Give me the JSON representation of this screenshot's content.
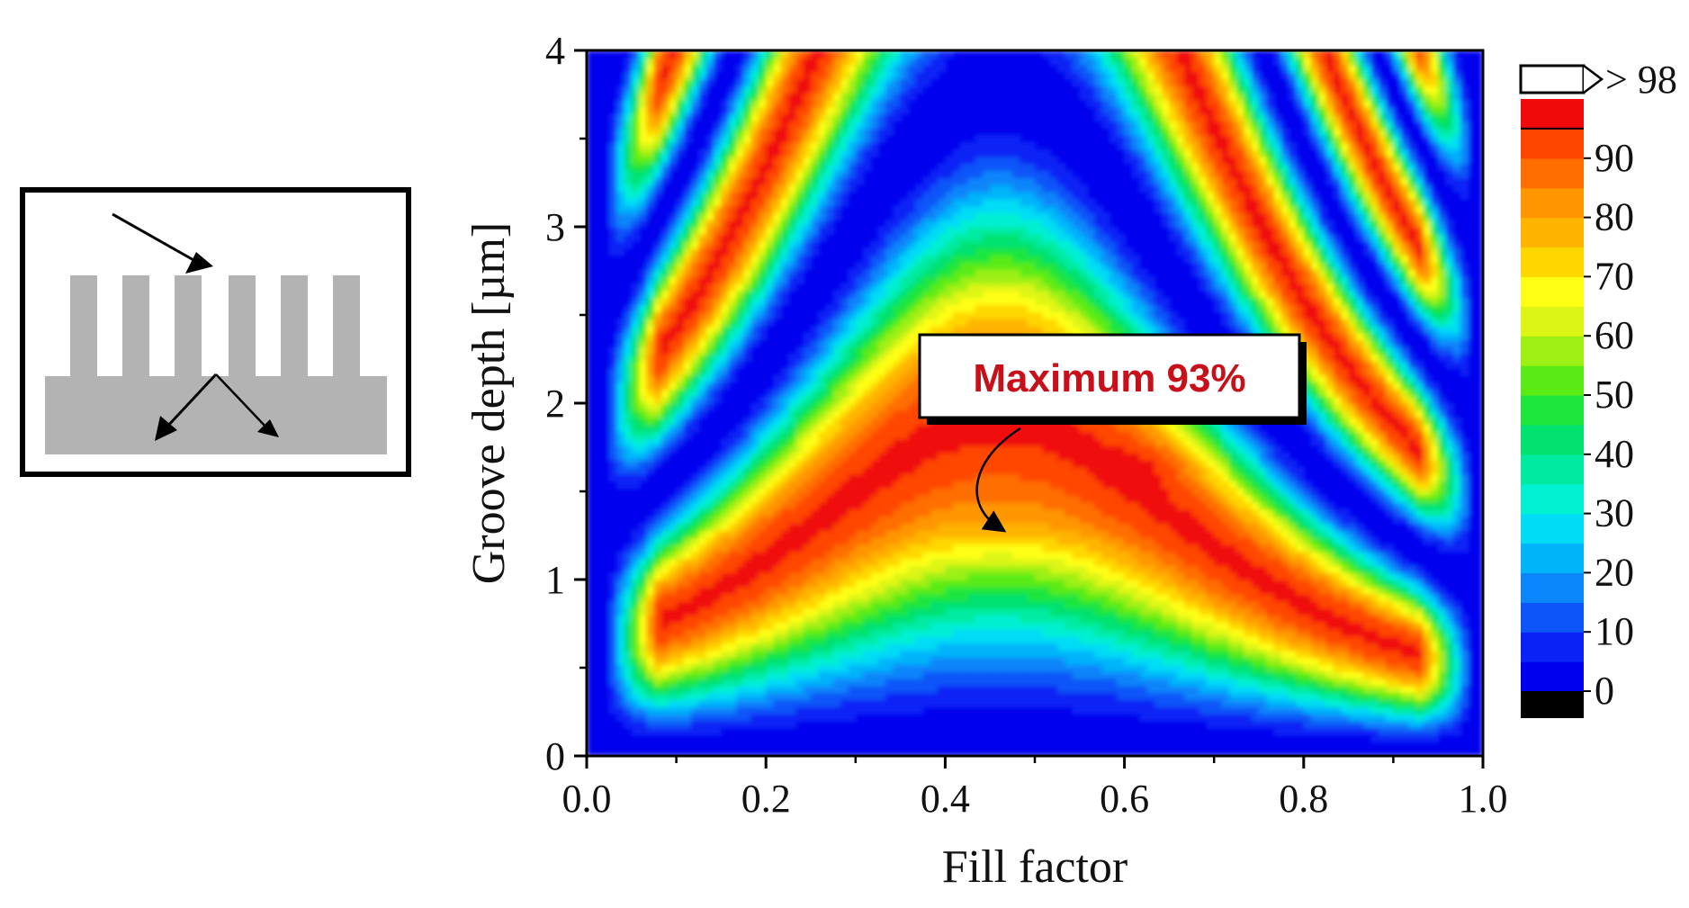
{
  "chart_data": {
    "type": "heatmap",
    "title": "",
    "xlabel": "Fill factor",
    "ylabel": "Groove depth [µm]",
    "xlim": [
      0.0,
      1.0
    ],
    "ylim": [
      0,
      4
    ],
    "x_ticks": [
      "0.0",
      "0.2",
      "0.4",
      "0.6",
      "0.8",
      "1.0"
    ],
    "y_ticks": [
      "0",
      "1",
      "2",
      "3",
      "4"
    ],
    "colorbar": {
      "levels": [
        0,
        5,
        10,
        15,
        20,
        25,
        30,
        35,
        40,
        45,
        50,
        55,
        60,
        65,
        70,
        75,
        80,
        85,
        90,
        95
      ],
      "colors": [
        "#0000ee",
        "#0a22f5",
        "#0d55f8",
        "#0a85fa",
        "#00b4fa",
        "#00dcf5",
        "#00f0d2",
        "#00eba0",
        "#00e170",
        "#1ee63c",
        "#5aeb14",
        "#9ef014",
        "#dcf514",
        "#ffff14",
        "#ffd700",
        "#ffb400",
        "#ff9600",
        "#ff6e00",
        "#ff4600",
        "#f00a0a"
      ],
      "below_color": "#000000",
      "above_color": "#ffffff",
      "tick_labels": [
        "0",
        "10",
        "20",
        "30",
        "40",
        "50",
        "60",
        "70",
        "80",
        "90"
      ],
      "above_label": "> 98"
    },
    "annotation": {
      "text": "Maximum 93%",
      "x": 0.47,
      "y": 1.28
    }
  },
  "schematic": {
    "description_icon": "grating-diffraction-icon"
  }
}
